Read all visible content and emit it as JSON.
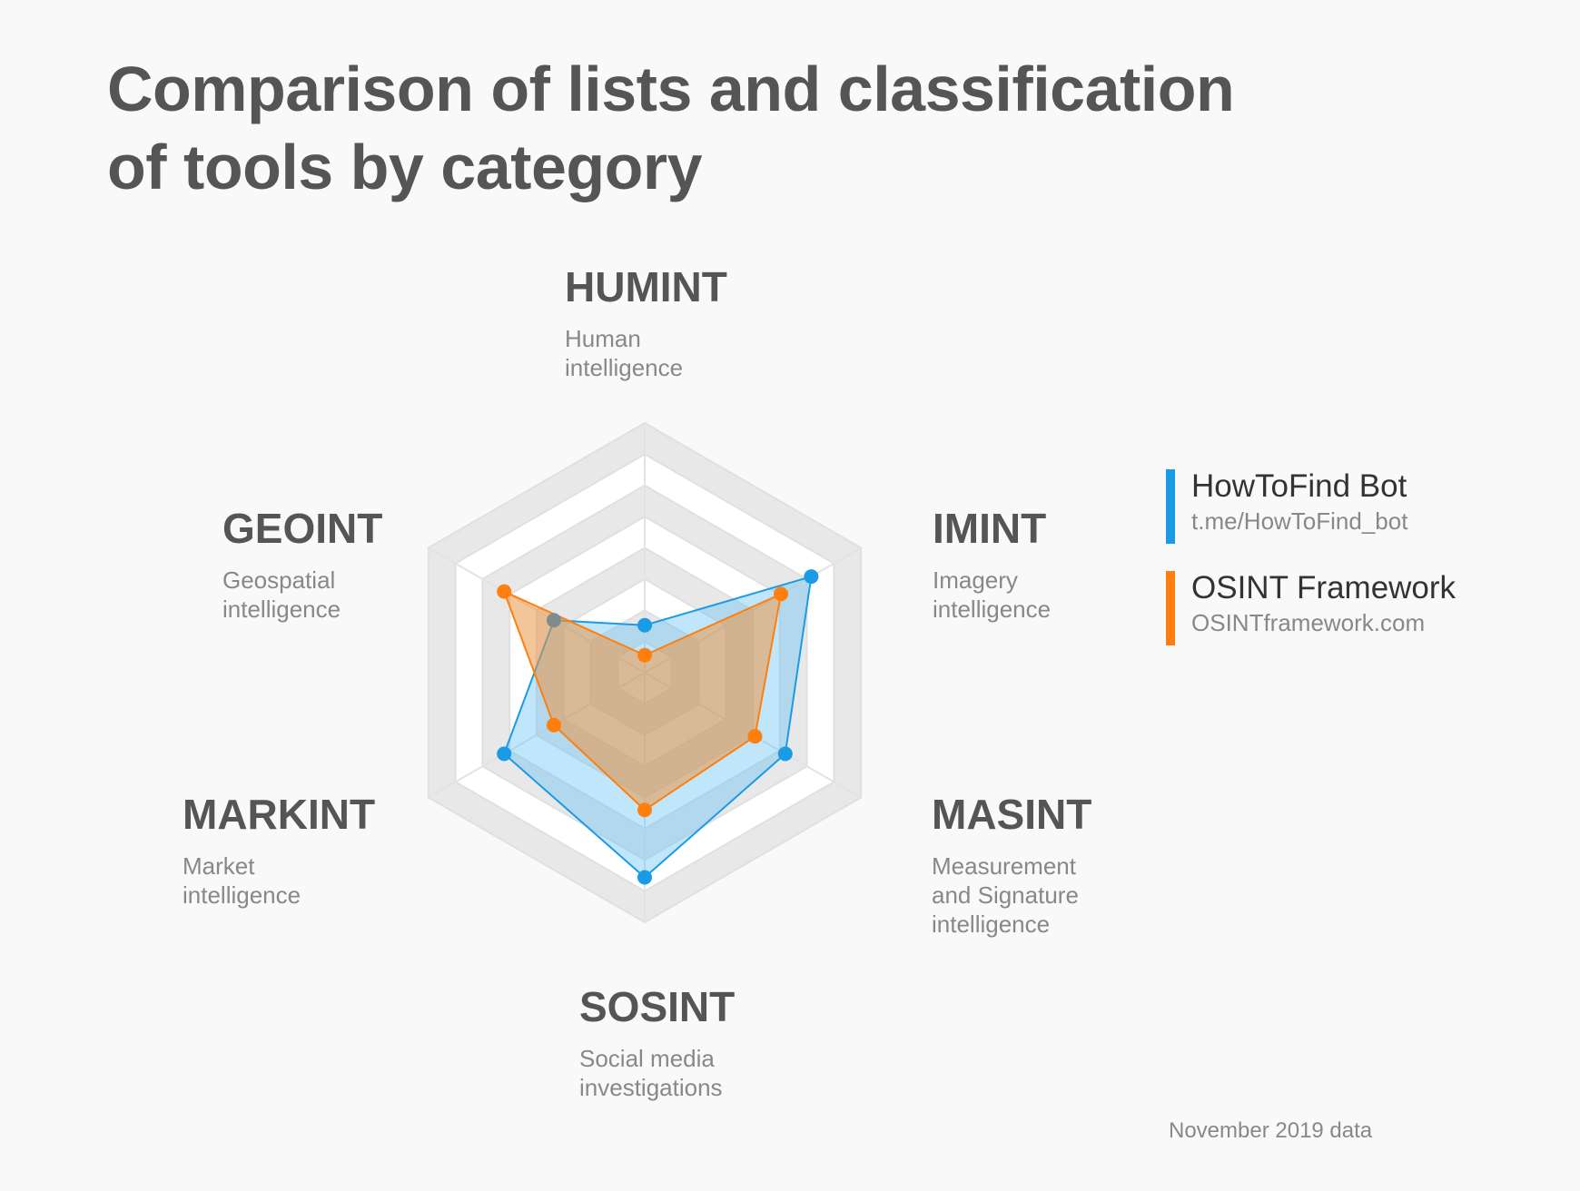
{
  "title_lines": [
    "Comparison of lists and classification",
    "of tools by category"
  ],
  "footnote": "November 2019 data",
  "axes": [
    {
      "code": "HUMINT",
      "desc_lines": [
        "Human",
        "intelligence"
      ]
    },
    {
      "code": "IMINT",
      "desc_lines": [
        "Imagery",
        "intelligence"
      ]
    },
    {
      "code": "MASINT",
      "desc_lines": [
        "Measurement",
        "and Signature",
        "intelligence"
      ]
    },
    {
      "code": "SOSINT",
      "desc_lines": [
        "Social media",
        "investigations"
      ]
    },
    {
      "code": "MARKINT",
      "desc_lines": [
        "Market",
        "intelligence"
      ]
    },
    {
      "code": "GEOINT",
      "desc_lines": [
        "Geospatial",
        "intelligence"
      ]
    }
  ],
  "legend": [
    {
      "name": "HowToFind Bot",
      "url": "t.me/HowToFind_bot",
      "color": "#1a9be6"
    },
    {
      "name": "OSINT Framework",
      "url": "OSINTframework.com",
      "color": "#ff7f0e"
    }
  ],
  "colors": {
    "howtofind": "#1a9be6",
    "osint": "#ff7f0e",
    "overlap_point": "#7f8c8d",
    "ring_light": "#e8e8e8",
    "ring_white": "#ffffff"
  },
  "chart_data": {
    "type": "radar",
    "categories": [
      "HUMINT",
      "IMINT",
      "MASINT",
      "SOSINT",
      "MARKINT",
      "GEOINT"
    ],
    "range": [
      0,
      1
    ],
    "rings": 8,
    "grid": true,
    "legend_position": "right",
    "series": [
      {
        "name": "HowToFind Bot",
        "values": [
          0.19,
          0.77,
          0.65,
          0.82,
          0.65,
          0.42
        ]
      },
      {
        "name": "OSINT Framework",
        "values": [
          0.07,
          0.63,
          0.51,
          0.55,
          0.42,
          0.65
        ]
      }
    ]
  }
}
